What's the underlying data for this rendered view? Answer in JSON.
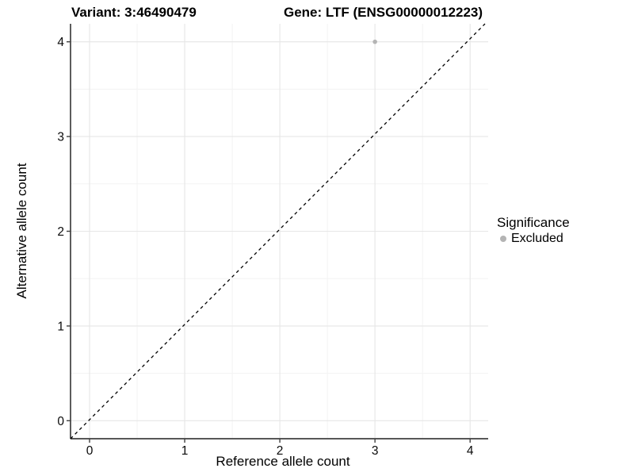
{
  "chart_data": {
    "type": "scatter",
    "title_left": "Variant: 3:46490479",
    "title_right": "Gene: LTF (ENSG00000012223)",
    "xlabel": "Reference allele count",
    "ylabel": "Alternative allele count",
    "xlim": [
      -0.2,
      4.19
    ],
    "ylim": [
      -0.19,
      4.19
    ],
    "xticks": [
      0,
      1,
      2,
      3,
      4
    ],
    "yticks": [
      0,
      1,
      2,
      3,
      4
    ],
    "x_minor": [
      0.5,
      1.5,
      2.5,
      3.5
    ],
    "y_minor": [
      0.5,
      1.5,
      2.5,
      3.5
    ],
    "grid": "major and minor gridlines on",
    "legend_position": "right",
    "reference_line": {
      "kind": "identity y=x",
      "style": "dashed",
      "color": "#000000"
    },
    "series": [
      {
        "name": "Excluded",
        "color": "#b4b4b4",
        "points": [
          {
            "x": 3,
            "y": 4
          }
        ]
      }
    ],
    "legend": {
      "title": "Significance",
      "items": [
        {
          "label": "Excluded",
          "color": "#b4b4b4"
        }
      ]
    },
    "colors": {
      "background": "#ffffff",
      "grid_major": "#e6e6e6",
      "grid_minor": "#f3f3f3",
      "axis": "#404040",
      "tick_text": "#0a0a0a",
      "title_text": "#000000"
    }
  }
}
